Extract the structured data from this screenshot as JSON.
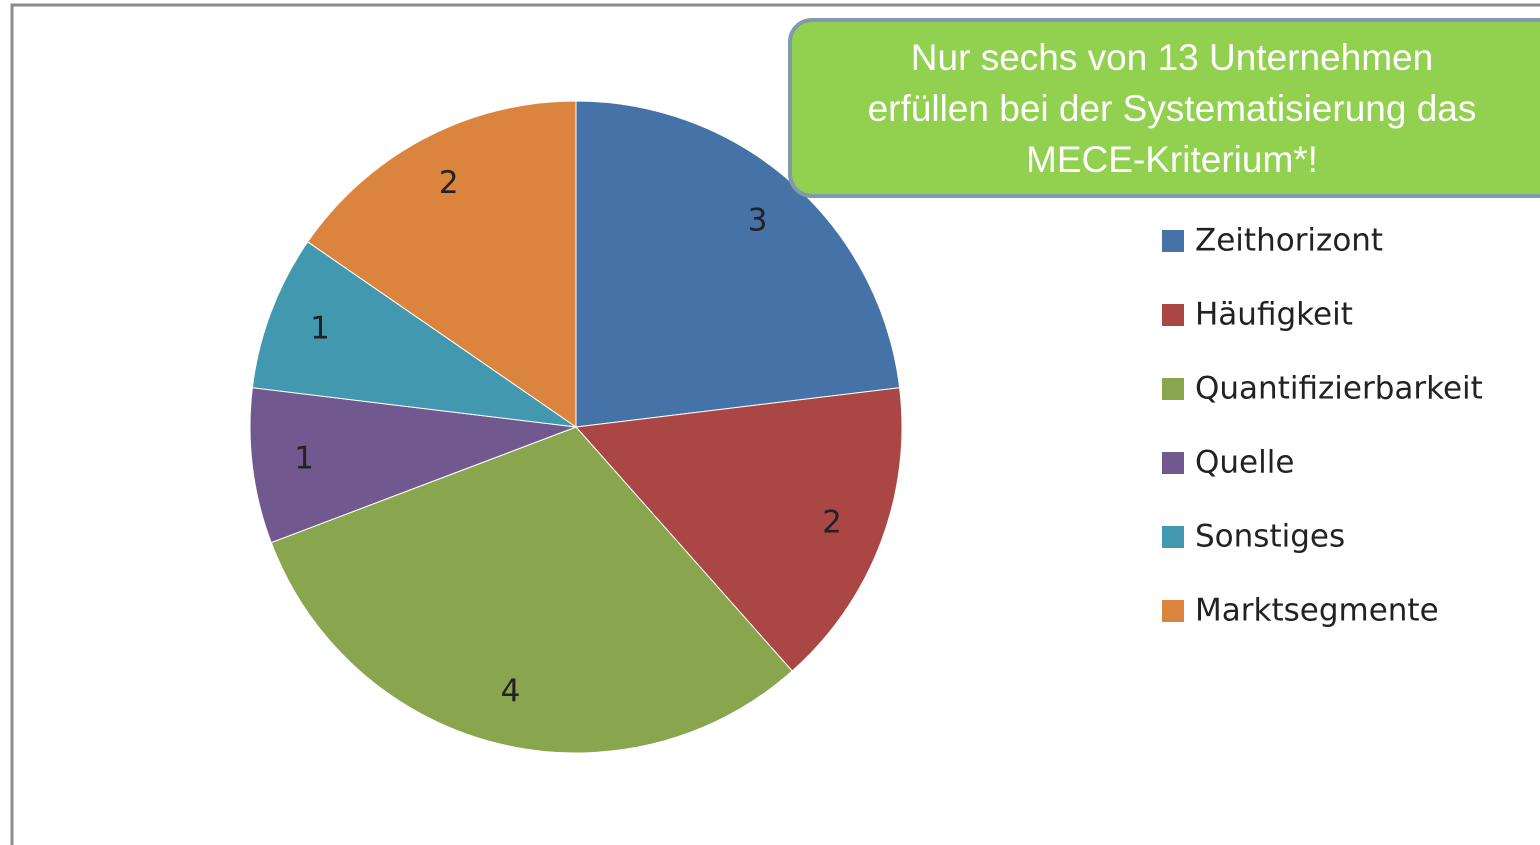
{
  "chart_data": {
    "type": "pie",
    "annotation": [
      "Nur sechs von 13 Unternehmen",
      "erfüllen bei der Systematisierung das",
      "MECE-Kriterium*!"
    ],
    "categories": [
      "Zeithorizont",
      "Häufigkeit",
      "Quantifizierbarkeit",
      "Quelle",
      "Sonstiges",
      "Marktsegmente"
    ],
    "values": [
      3,
      2,
      4,
      1,
      1,
      2
    ],
    "colors": [
      "#4572a7",
      "#aa4643",
      "#89a54e",
      "#71588f",
      "#4198af",
      "#db843d"
    ],
    "legend": "right"
  }
}
